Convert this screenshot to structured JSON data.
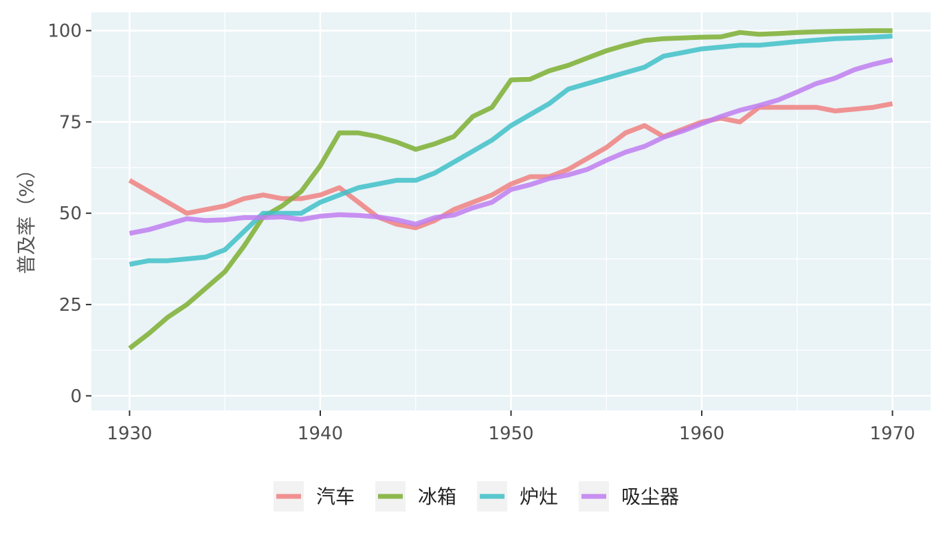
{
  "chart_data": {
    "type": "line",
    "title": "",
    "xlabel": "",
    "ylabel": "普及率（%）",
    "xlim": [
      1928,
      1972
    ],
    "ylim": [
      -4,
      105
    ],
    "x_ticks": [
      1930,
      1940,
      1950,
      1960,
      1970
    ],
    "y_ticks": [
      0,
      25,
      50,
      75,
      100
    ],
    "x_minor_ticks": [
      1935,
      1945,
      1955,
      1965
    ],
    "y_minor_ticks": [
      12.5,
      37.5,
      62.5,
      87.5
    ],
    "grid": true,
    "legend_position": "bottom",
    "colors": {
      "panel_background": "#eaf3f6",
      "grid": "#ffffff",
      "tick_text": "#4d4d4d"
    },
    "series": [
      {
        "name": "汽车",
        "color": "#f08080",
        "x": [
          1930,
          1931,
          1932,
          1933,
          1934,
          1935,
          1936,
          1937,
          1938,
          1939,
          1940,
          1941,
          1942,
          1943,
          1944,
          1945,
          1946,
          1947,
          1948,
          1949,
          1950,
          1951,
          1952,
          1953,
          1954,
          1955,
          1956,
          1957,
          1958,
          1959,
          1960,
          1961,
          1962,
          1963,
          1964,
          1965,
          1966,
          1967,
          1968,
          1969,
          1970
        ],
        "y": [
          59,
          56,
          53,
          50,
          51,
          52,
          54,
          55,
          54,
          54,
          55,
          57,
          53,
          49,
          47,
          46,
          48,
          51,
          53,
          55,
          58,
          60,
          60,
          62,
          65,
          68,
          72,
          74,
          71,
          73,
          75,
          76,
          75,
          79,
          79,
          79,
          79,
          78,
          78.5,
          79,
          80
        ]
      },
      {
        "name": "冰箱",
        "color": "#7cae31",
        "x": [
          1930,
          1931,
          1932,
          1933,
          1934,
          1935,
          1936,
          1937,
          1938,
          1939,
          1940,
          1941,
          1942,
          1943,
          1944,
          1945,
          1946,
          1947,
          1948,
          1949,
          1950,
          1951,
          1952,
          1953,
          1954,
          1955,
          1956,
          1957,
          1958,
          1959,
          1960,
          1961,
          1962,
          1963,
          1964,
          1965,
          1966,
          1967,
          1968,
          1969,
          1970
        ],
        "y": [
          13,
          17,
          21.5,
          25,
          29.5,
          34,
          41,
          49,
          52,
          56,
          63,
          72,
          72,
          71,
          69.5,
          67.5,
          69,
          71,
          76.5,
          79,
          86.5,
          86.7,
          89,
          90.5,
          92.5,
          94.5,
          96,
          97.3,
          97.8,
          98,
          98.2,
          98.3,
          99.5,
          99,
          99.2,
          99.5,
          99.7,
          99.8,
          99.9,
          100,
          100
        ]
      },
      {
        "name": "炉灶",
        "color": "#40c0c8",
        "x": [
          1930,
          1931,
          1932,
          1933,
          1934,
          1935,
          1936,
          1937,
          1938,
          1939,
          1940,
          1941,
          1942,
          1943,
          1944,
          1945,
          1946,
          1947,
          1948,
          1949,
          1950,
          1951,
          1952,
          1953,
          1954,
          1955,
          1956,
          1957,
          1958,
          1959,
          1960,
          1961,
          1962,
          1963,
          1964,
          1965,
          1966,
          1967,
          1968,
          1969,
          1970
        ],
        "y": [
          36,
          37,
          37,
          37.5,
          38,
          40,
          45,
          50,
          50,
          50,
          53,
          55,
          57,
          58,
          59,
          59,
          61,
          64,
          67,
          70,
          74,
          77,
          80,
          84,
          85.5,
          87,
          88.5,
          90,
          93,
          94,
          95,
          95.5,
          96,
          96,
          96.5,
          97,
          97.4,
          97.8,
          98,
          98.2,
          98.5
        ]
      },
      {
        "name": "吸尘器",
        "color": "#c07ef0",
        "x": [
          1930,
          1931,
          1932,
          1933,
          1934,
          1935,
          1936,
          1937,
          1938,
          1939,
          1940,
          1941,
          1942,
          1943,
          1944,
          1945,
          1946,
          1947,
          1948,
          1949,
          1950,
          1951,
          1952,
          1953,
          1954,
          1955,
          1956,
          1957,
          1958,
          1959,
          1960,
          1961,
          1962,
          1963,
          1964,
          1965,
          1966,
          1967,
          1968,
          1969,
          1970
        ],
        "y": [
          44.5,
          45.5,
          47,
          48.5,
          48,
          48.2,
          48.8,
          48.8,
          49,
          48.3,
          49.2,
          49.6,
          49.4,
          49,
          48.2,
          47,
          48.8,
          49.5,
          51.5,
          53,
          56.5,
          57.8,
          59.5,
          60.5,
          62,
          64.5,
          66.7,
          68.3,
          70.8,
          72.5,
          74.5,
          76.5,
          78.2,
          79.5,
          81,
          83.2,
          85.5,
          87,
          89.3,
          90.8,
          92
        ]
      }
    ]
  }
}
